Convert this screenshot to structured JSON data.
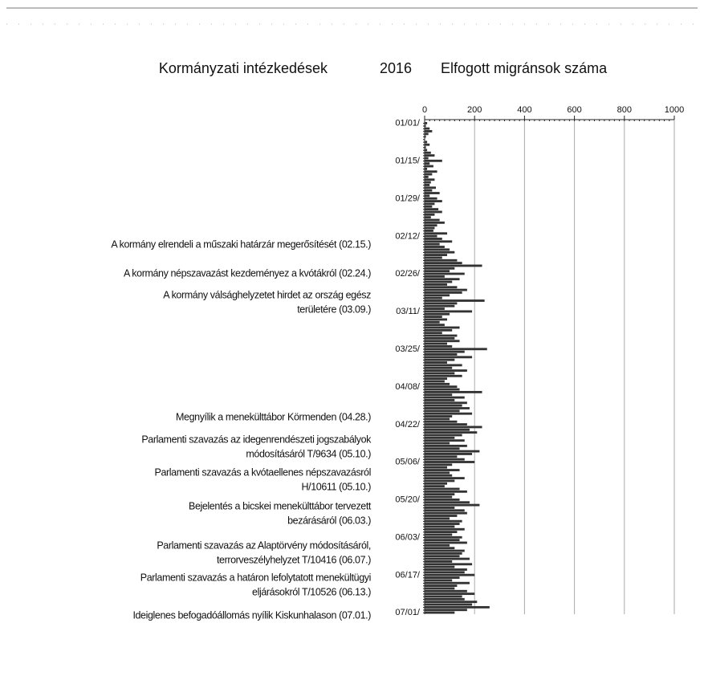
{
  "chart_data": {
    "type": "bar",
    "left_header": "Kormányzati intézkedések",
    "title": "2016",
    "right_header": "Elfogott migránsok száma",
    "orientation": "horizontal",
    "color": "#333333",
    "grid": true,
    "xlim": [
      0,
      1000
    ],
    "xticks": [
      0,
      200,
      400,
      600,
      800,
      1000
    ],
    "categories": [
      "01/01/",
      null,
      null,
      null,
      null,
      null,
      null,
      null,
      null,
      null,
      null,
      null,
      null,
      null,
      "01/15/",
      null,
      null,
      null,
      null,
      null,
      null,
      null,
      null,
      null,
      null,
      null,
      null,
      null,
      "01/29/",
      null,
      null,
      null,
      null,
      null,
      null,
      null,
      null,
      null,
      null,
      null,
      null,
      null,
      "02/12/",
      null,
      null,
      null,
      null,
      null,
      null,
      null,
      null,
      null,
      null,
      null,
      null,
      null,
      "02/26/",
      null,
      null,
      null,
      null,
      null,
      null,
      null,
      null,
      null,
      null,
      null,
      null,
      null,
      "03/11/",
      null,
      null,
      null,
      null,
      null,
      null,
      null,
      null,
      null,
      null,
      null,
      null,
      null,
      "03/25/",
      null,
      null,
      null,
      null,
      null,
      null,
      null,
      null,
      null,
      null,
      null,
      null,
      null,
      "04/08/",
      null,
      null,
      null,
      null,
      null,
      null,
      null,
      null,
      null,
      null,
      null,
      null,
      null,
      "04/22/",
      null,
      null,
      null,
      null,
      null,
      null,
      null,
      null,
      null,
      null,
      null,
      null,
      null,
      "05/06/",
      null,
      null,
      null,
      null,
      null,
      null,
      null,
      null,
      null,
      null,
      null,
      null,
      null,
      "05/20/",
      null,
      null,
      null,
      null,
      null,
      null,
      null,
      null,
      null,
      null,
      null,
      null,
      null,
      "06/03/",
      null,
      null,
      null,
      null,
      null,
      null,
      null,
      null,
      null,
      null,
      null,
      null,
      null,
      "06/17/",
      null,
      null,
      null,
      null,
      null,
      null,
      null,
      null,
      null,
      null,
      null,
      null,
      null,
      "07/01/"
    ],
    "values": [
      10,
      5,
      20,
      30,
      15,
      5,
      0,
      10,
      20,
      5,
      10,
      25,
      40,
      15,
      70,
      20,
      35,
      10,
      50,
      30,
      15,
      40,
      25,
      20,
      45,
      30,
      60,
      20,
      50,
      70,
      40,
      30,
      55,
      70,
      40,
      25,
      60,
      80,
      50,
      40,
      35,
      90,
      50,
      70,
      110,
      60,
      80,
      100,
      120,
      90,
      70,
      130,
      150,
      230,
      120,
      100,
      160,
      80,
      140,
      110,
      90,
      130,
      170,
      150,
      100,
      70,
      240,
      130,
      120,
      80,
      190,
      100,
      70,
      90,
      60,
      80,
      140,
      110,
      70,
      130,
      120,
      140,
      90,
      110,
      250,
      160,
      130,
      190,
      120,
      90,
      150,
      110,
      170,
      120,
      150,
      90,
      80,
      100,
      130,
      140,
      230,
      110,
      160,
      120,
      170,
      150,
      180,
      140,
      190,
      110,
      100,
      130,
      170,
      230,
      180,
      210,
      150,
      120,
      160,
      100,
      170,
      140,
      220,
      190,
      130,
      160,
      200,
      110,
      90,
      140,
      100,
      110,
      160,
      120,
      90,
      80,
      140,
      170,
      120,
      110,
      140,
      180,
      220,
      120,
      160,
      170,
      130,
      100,
      150,
      140,
      120,
      160,
      130,
      110,
      150,
      140,
      170,
      100,
      120,
      160,
      150,
      140,
      180,
      110,
      190,
      120,
      170,
      160,
      200,
      140,
      110,
      180,
      130,
      120,
      170,
      200,
      150,
      160,
      210,
      190,
      260,
      170,
      120
    ],
    "annotations": [
      [
        "A kormány elrendeli a műszaki határzár megerősítését (02.15.)"
      ],
      [
        "A kormány népszavazást kezdeményez a kvótákról (02.24.)"
      ],
      [
        "A kormány válsághelyzetet hirdet az ország egész",
        "területére (03.09.)"
      ],
      [
        "Megnyílik a menekülttábor Körmenden (04.28.)"
      ],
      [
        "Parlamenti szavazás az idegenrendészeti jogszabályok",
        "módosításáról T/9634 (05.10.)"
      ],
      [
        "Parlamenti szavazás a kvótaellenes népszavazásról",
        "H/10611 (05.10.)"
      ],
      [
        "Bejelentés a bicskei menekülttábor tervezett",
        "bezárásáról (06.03.)"
      ],
      [
        "Parlamenti szavazás az Alaptörvény módosításáról,",
        "terrorveszélyhelyzet T/10416 (06.07.)"
      ],
      [
        "Parlamenti szavazás a határon lefolytatott menekültügyi",
        "eljárásokról T/10526 (06.13.)"
      ],
      [
        "Ideiglenes befogadóállomás nyílik Kiskunhalason (07.01.)"
      ]
    ]
  }
}
